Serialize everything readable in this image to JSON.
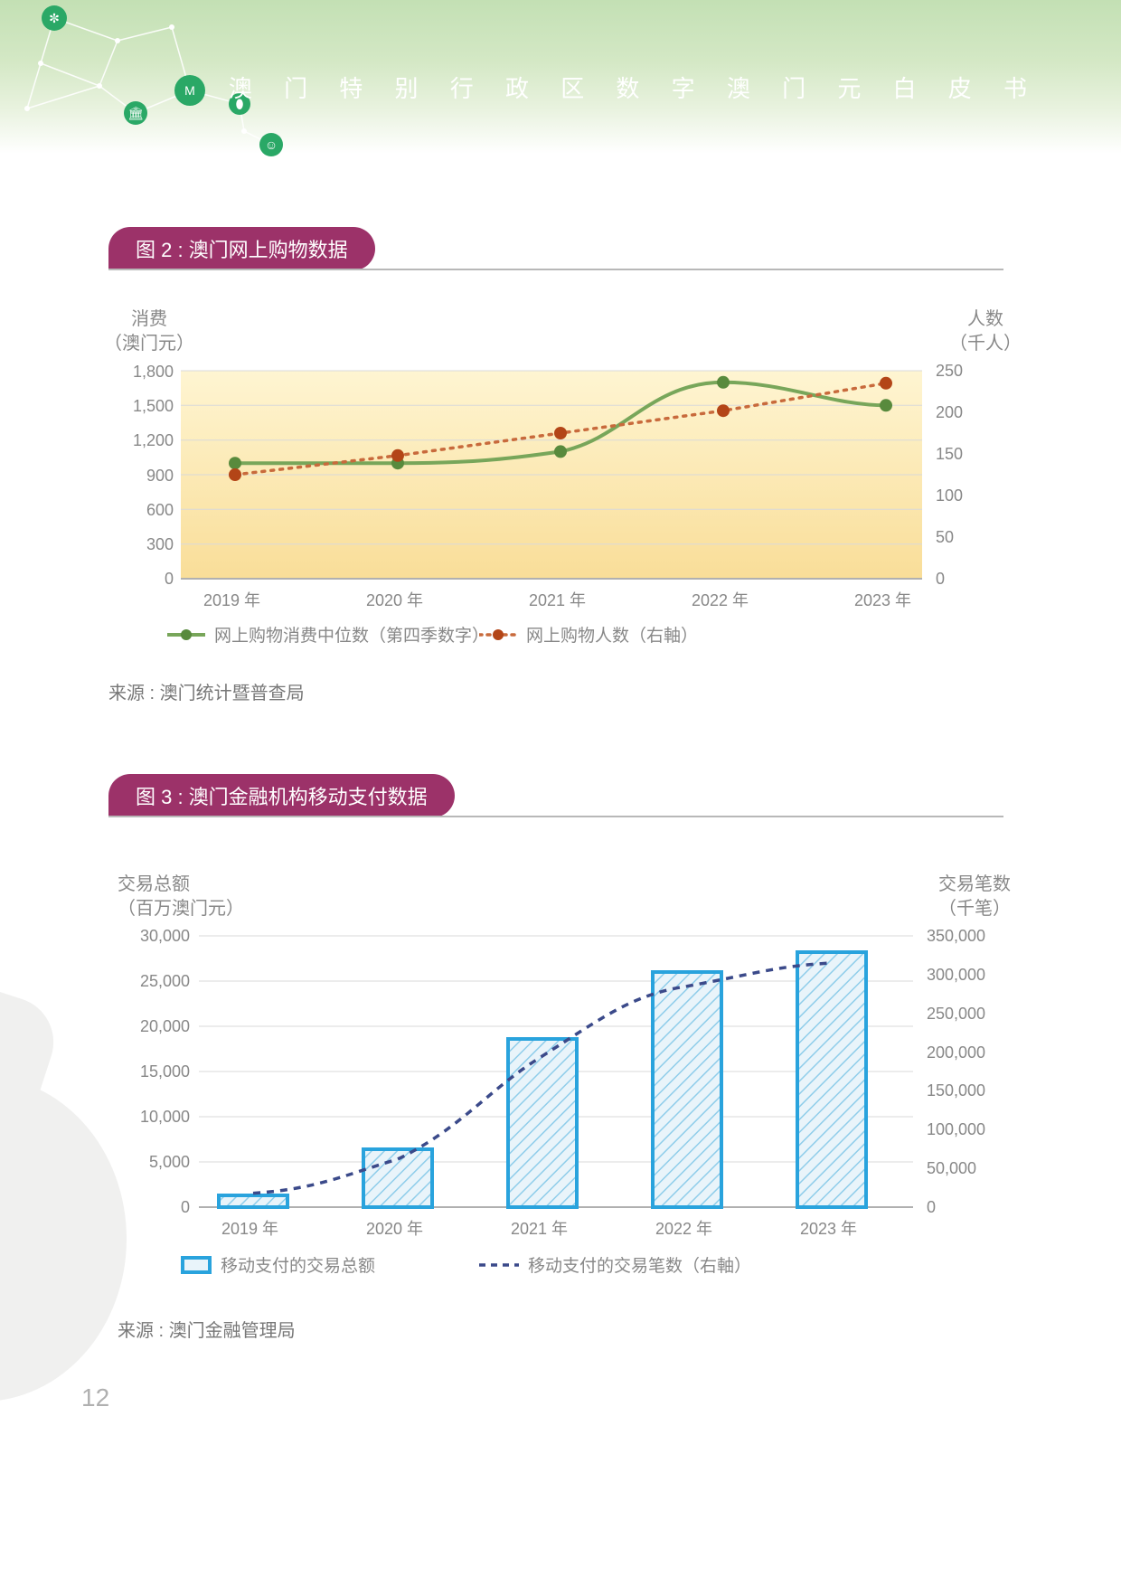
{
  "header": {
    "title": "澳 门 特 别 行 政 区 数 字 澳 门 元 白 皮 书",
    "band_gradient": [
      "#c3e0b4",
      "#ffffff"
    ],
    "icon_color": "#2aa866",
    "line_color": "#ffffff"
  },
  "page_number": "12",
  "chart1": {
    "pill_label": "图 2 : 澳门网上购物数据",
    "pill_color": "#9c3269",
    "y_left_label": "消费\n（澳门元）",
    "y_right_label": "人数\n（千人）",
    "y_left": {
      "min": 0,
      "max": 1800,
      "step": 300,
      "ticks": [
        "0",
        "300",
        "600",
        "900",
        "1,200",
        "1,500",
        "1,800"
      ]
    },
    "y_right": {
      "min": 0,
      "max": 250,
      "step": 50,
      "ticks": [
        "0",
        "50",
        "100",
        "150",
        "200",
        "250"
      ]
    },
    "x_categories": [
      "2019 年",
      "2020 年",
      "2021 年",
      "2022 年",
      "2023 年"
    ],
    "series_spend": {
      "label": "网上购物消费中位数（第四季数字）",
      "color": "#78a65a",
      "values": [
        1000,
        1000,
        1100,
        1700,
        1500
      ],
      "marker_fill": "#588a3d"
    },
    "series_people": {
      "label": "网上购物人数（右軸）",
      "color": "#c86a3c",
      "values": [
        125,
        148,
        175,
        202,
        235
      ],
      "marker_fill": "#b34517"
    },
    "gradient_top": "#fdf2c8",
    "gradient_bottom": "#eeb93e",
    "grid_color": "#d9d9d9",
    "legend_marker1": "line-circle-green",
    "legend_marker2": "dotted-circle-orange",
    "source": "来源 : 澳门统计暨普查局"
  },
  "chart2": {
    "pill_label": "图 3 : 澳门金融机构移动支付数据",
    "pill_color": "#9c3269",
    "y_left_label": "交易总额\n（百万澳门元）",
    "y_right_label": "交易笔数\n（千笔）",
    "y_left": {
      "min": 0,
      "max": 30000,
      "step": 5000,
      "ticks": [
        "0",
        "5,000",
        "10,000",
        "15,000",
        "20,000",
        "25,000",
        "30,000"
      ]
    },
    "y_right": {
      "min": 0,
      "max": 350000,
      "step": 50000,
      "ticks": [
        "0",
        "50,000",
        "100,000",
        "150,000",
        "200,000",
        "250,000",
        "300,000",
        "350,000"
      ]
    },
    "x_categories": [
      "2019 年",
      "2020 年",
      "2021 年",
      "2022 年",
      "2023 年"
    ],
    "series_bars": {
      "label": "移动支付的交易总额",
      "color_border": "#29a3dd",
      "color_fill": "#cde8f3",
      "hatch_color": "#7cc5e6",
      "values": [
        1300,
        6400,
        18600,
        26000,
        28200
      ]
    },
    "series_line": {
      "label": "移动支付的交易笔数（右軸）",
      "color": "#3b4a8a",
      "dash": "6,6",
      "values": [
        18000,
        62000,
        195000,
        285000,
        315000
      ]
    },
    "grid_color": "#d9d9d9",
    "source": "来源 : 澳门金融管理局"
  }
}
